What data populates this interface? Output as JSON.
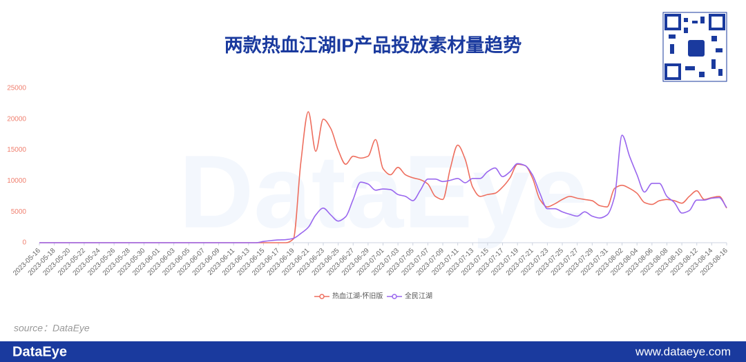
{
  "chart_data": {
    "type": "line",
    "title": "两款热血江湖IP产品投放素材量趋势",
    "source": "source：DataEye",
    "watermark": "DataEye",
    "footer_logo": "DataEye",
    "footer_url": "www.dataeye.com",
    "categories": [
      "2023-05-16",
      null,
      "2023-05-18",
      null,
      "2023-05-20",
      null,
      "2023-05-22",
      null,
      "2023-05-24",
      null,
      "2023-05-26",
      null,
      "2023-05-28",
      null,
      "2023-05-30",
      null,
      "2023-06-01",
      null,
      "2023-06-03",
      null,
      "2023-06-05",
      null,
      "2023-06-07",
      null,
      "2023-06-09",
      null,
      "2023-06-11",
      null,
      "2023-06-13",
      null,
      "2023-06-15",
      null,
      "2023-06-17",
      null,
      "2023-06-19",
      null,
      "2023-06-21",
      null,
      "2023-06-23",
      null,
      "2023-06-25",
      null,
      "2023-06-27",
      null,
      "2023-06-29",
      null,
      "2023-07-01",
      null,
      "2023-07-03",
      null,
      "2023-07-05",
      null,
      "2023-07-07",
      null,
      "2023-07-09",
      null,
      "2023-07-11",
      null,
      "2023-07-13",
      null,
      "2023-07-15",
      null,
      "2023-07-17",
      null,
      "2023-07-19",
      null,
      "2023-07-21",
      null,
      "2023-07-23",
      null,
      "2023-07-25",
      null,
      "2023-07-27",
      null,
      "2023-07-29",
      null,
      "2023-07-31",
      null,
      "2023-08-02",
      null,
      "2023-08-04",
      null,
      "2023-08-06",
      null,
      "2023-08-08",
      null,
      "2023-08-10",
      null,
      "2023-08-12",
      null,
      "2023-08-14",
      null,
      "2023-08-16"
    ],
    "series": [
      {
        "name": "热血江湖-怀旧版",
        "color": "#ee6e5e",
        "values": [
          0,
          0,
          0,
          0,
          0,
          0,
          0,
          0,
          0,
          0,
          0,
          0,
          0,
          0,
          0,
          0,
          0,
          0,
          0,
          0,
          0,
          0,
          0,
          0,
          0,
          0,
          0,
          0,
          0,
          0,
          0,
          0,
          0,
          0,
          600,
          13000,
          21200,
          14800,
          20000,
          18500,
          15000,
          12700,
          14000,
          13700,
          14000,
          16700,
          12000,
          11000,
          12200,
          11000,
          10500,
          10200,
          9500,
          7500,
          7000,
          12000,
          15800,
          13500,
          9000,
          7500,
          7800,
          8000,
          9000,
          10500,
          12700,
          12500,
          10500,
          7000,
          5800,
          6300,
          7000,
          7500,
          7200,
          7000,
          6800,
          6000,
          5800,
          8800,
          9300,
          8800,
          8000,
          6500,
          6200,
          6800,
          7000,
          6800,
          6400,
          7500,
          8400,
          7000,
          7300,
          7500,
          5600
        ]
      },
      {
        "name": "全民江湖",
        "color": "#9966ee",
        "values": [
          0,
          0,
          0,
          0,
          0,
          0,
          0,
          0,
          0,
          0,
          0,
          0,
          0,
          0,
          0,
          0,
          0,
          0,
          0,
          0,
          0,
          0,
          0,
          0,
          0,
          0,
          0,
          0,
          0,
          0,
          200,
          350,
          450,
          500,
          700,
          1500,
          2500,
          4500,
          5600,
          4500,
          3500,
          4200,
          7000,
          9800,
          9500,
          8500,
          8700,
          8600,
          7800,
          7500,
          6800,
          8500,
          10300,
          10300,
          9900,
          10100,
          10400,
          9700,
          10400,
          10400,
          11500,
          12100,
          10700,
          11500,
          12800,
          12500,
          11000,
          8000,
          5500,
          5500,
          5000,
          4600,
          4300,
          5000,
          4300,
          4000,
          4500,
          7500,
          17400,
          14000,
          11000,
          8200,
          9600,
          9600,
          7500,
          6500,
          4800,
          5200,
          6900,
          6900,
          7200,
          7300,
          5700
        ]
      }
    ],
    "ylim": [
      0,
      25000
    ],
    "yticks": [
      0,
      5000,
      10000,
      15000,
      20000,
      25000
    ],
    "grid": false,
    "legend": "bottom"
  }
}
